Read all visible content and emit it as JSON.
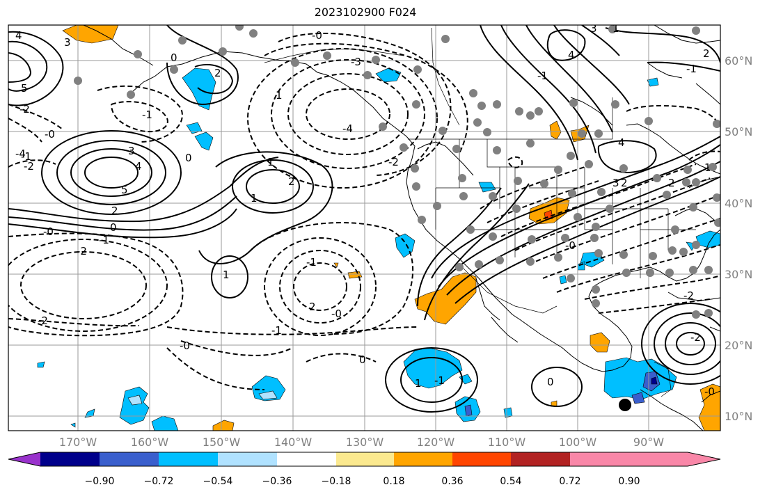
{
  "title": "2023102900 F024",
  "lat_labels": [
    "60°N",
    "50°N",
    "40°N",
    "30°N",
    "20°N",
    "10°N"
  ],
  "lon_labels": [
    "170°W",
    "160°W",
    "150°W",
    "140°W",
    "130°W",
    "120°W",
    "110°W",
    "100°W",
    "90°W"
  ],
  "colorbar": {
    "colors": [
      "#9932cc",
      "#00008b",
      "#3a5fcd",
      "#00bfff",
      "#b0e2ff",
      "#ffffff",
      "#fbe98f",
      "#ffa500",
      "#ff4500",
      "#b22222",
      "#f987a8"
    ],
    "tick_labels": [
      "−0.90",
      "−0.72",
      "−0.54",
      "−0.36",
      "−0.18",
      "0.18",
      "0.36",
      "0.54",
      "0.72",
      "0.90"
    ]
  },
  "contour_labels": [
    "4",
    "3",
    "5",
    "2",
    "0",
    "-1",
    "-2",
    "-3",
    "-4",
    "1",
    "-4",
    "3",
    "4",
    "5",
    "2",
    "0",
    "-0",
    "-1",
    "-2",
    "-2",
    "-2",
    "0",
    "-1",
    "-0",
    "1",
    "-1",
    "-0",
    "0",
    "1",
    "-2",
    "-1",
    "-0",
    "2",
    "1",
    "2",
    "3",
    "-1",
    "1",
    "-2",
    "1",
    "4",
    "3",
    "-1",
    "-0",
    "4",
    "1",
    "2",
    "2",
    "-0",
    "0",
    "-1",
    "-2",
    "2",
    "-0"
  ]
}
